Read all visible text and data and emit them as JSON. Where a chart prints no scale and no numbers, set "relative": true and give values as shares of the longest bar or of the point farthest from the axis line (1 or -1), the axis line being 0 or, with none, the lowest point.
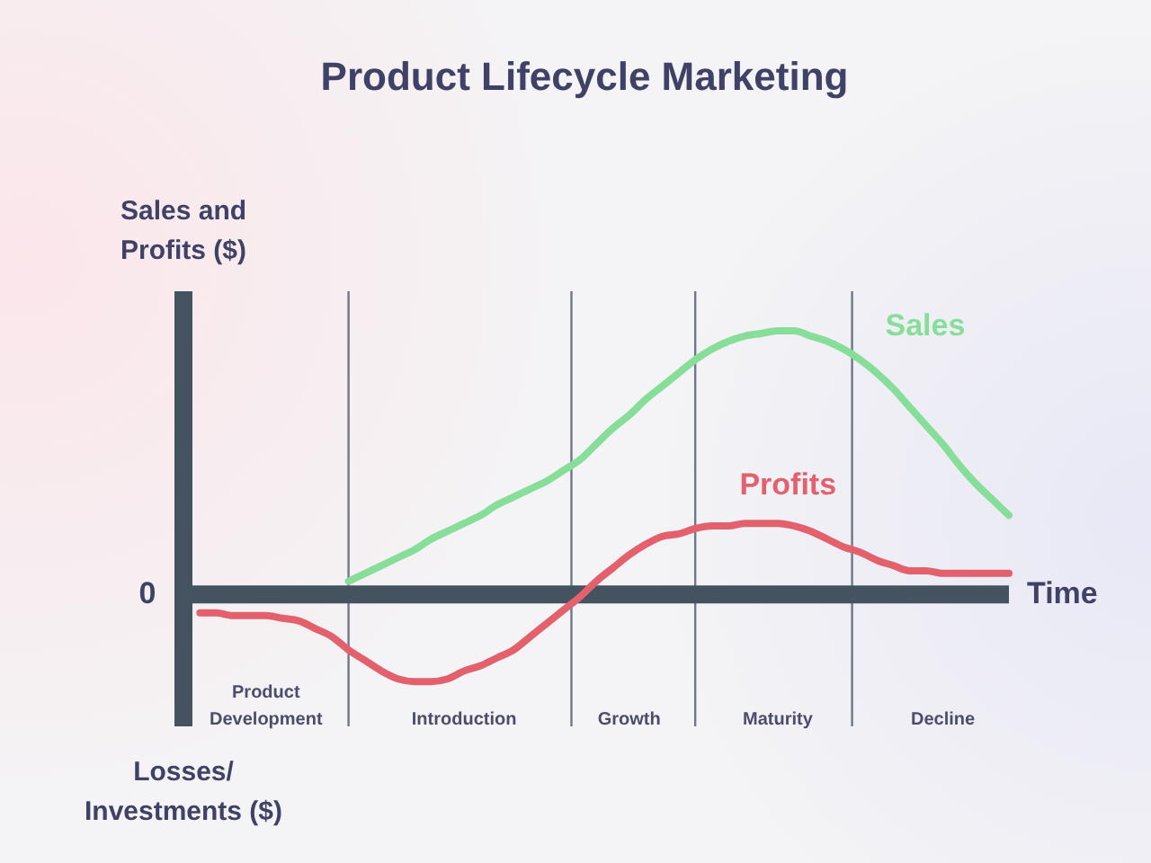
{
  "chart_data": {
    "type": "line",
    "title": "Product Lifecycle Marketing",
    "ylabel": "Sales and Profits ($)",
    "xlabel": "Time",
    "relative": true,
    "tick_labels": "x",
    "categories": [
      null,
      null,
      null,
      null,
      null,
      "Product Development",
      null,
      null,
      null,
      null,
      null,
      null,
      null,
      null,
      null,
      null,
      null,
      "Introduction",
      null,
      null,
      null,
      null,
      null,
      null,
      null,
      null,
      null,
      "Growth",
      null,
      null,
      null,
      null,
      null,
      null,
      null,
      null,
      "Maturity",
      null,
      null,
      null,
      null,
      null,
      null,
      null,
      null,
      null,
      "Decline",
      null,
      null,
      null,
      null
    ],
    "series": [
      {
        "name": "Sales",
        "color": "#86de98",
        "values": [
          null,
          null,
          null,
          null,
          null,
          null,
          null,
          null,
          null,
          null,
          0.05,
          0.08,
          0.11,
          0.14,
          0.17,
          0.21,
          0.24,
          0.27,
          0.3,
          0.34,
          0.37,
          0.4,
          0.43,
          0.47,
          0.51,
          0.57,
          0.63,
          0.68,
          0.74,
          0.79,
          0.84,
          0.89,
          0.93,
          0.96,
          0.98,
          0.99,
          1,
          1,
          0.98,
          0.96,
          0.93,
          0.89,
          0.84,
          0.78,
          0.71,
          0.64,
          0.57,
          0.49,
          0.42,
          0.36,
          0.3
        ]
      },
      {
        "name": "Profits",
        "color": "#e3606d",
        "values": [
          null,
          -0.07,
          -0.07,
          -0.08,
          -0.08,
          -0.08,
          -0.09,
          -0.1,
          -0.13,
          -0.16,
          -0.21,
          -0.25,
          -0.29,
          -0.32,
          -0.33,
          -0.33,
          -0.32,
          -0.29,
          -0.27,
          -0.24,
          -0.21,
          -0.16,
          -0.11,
          -0.06,
          -0.01,
          0.05,
          0.1,
          0.15,
          0.19,
          0.22,
          0.23,
          0.25,
          0.26,
          0.26,
          0.27,
          0.27,
          0.27,
          0.26,
          0.24,
          0.21,
          0.18,
          0.16,
          0.13,
          0.11,
          0.09,
          0.09,
          0.08,
          0.08,
          0.08,
          0.08,
          0.08
        ]
      }
    ],
    "annotations": [
      "0",
      "Losses/ Investments ($)"
    ]
  }
}
